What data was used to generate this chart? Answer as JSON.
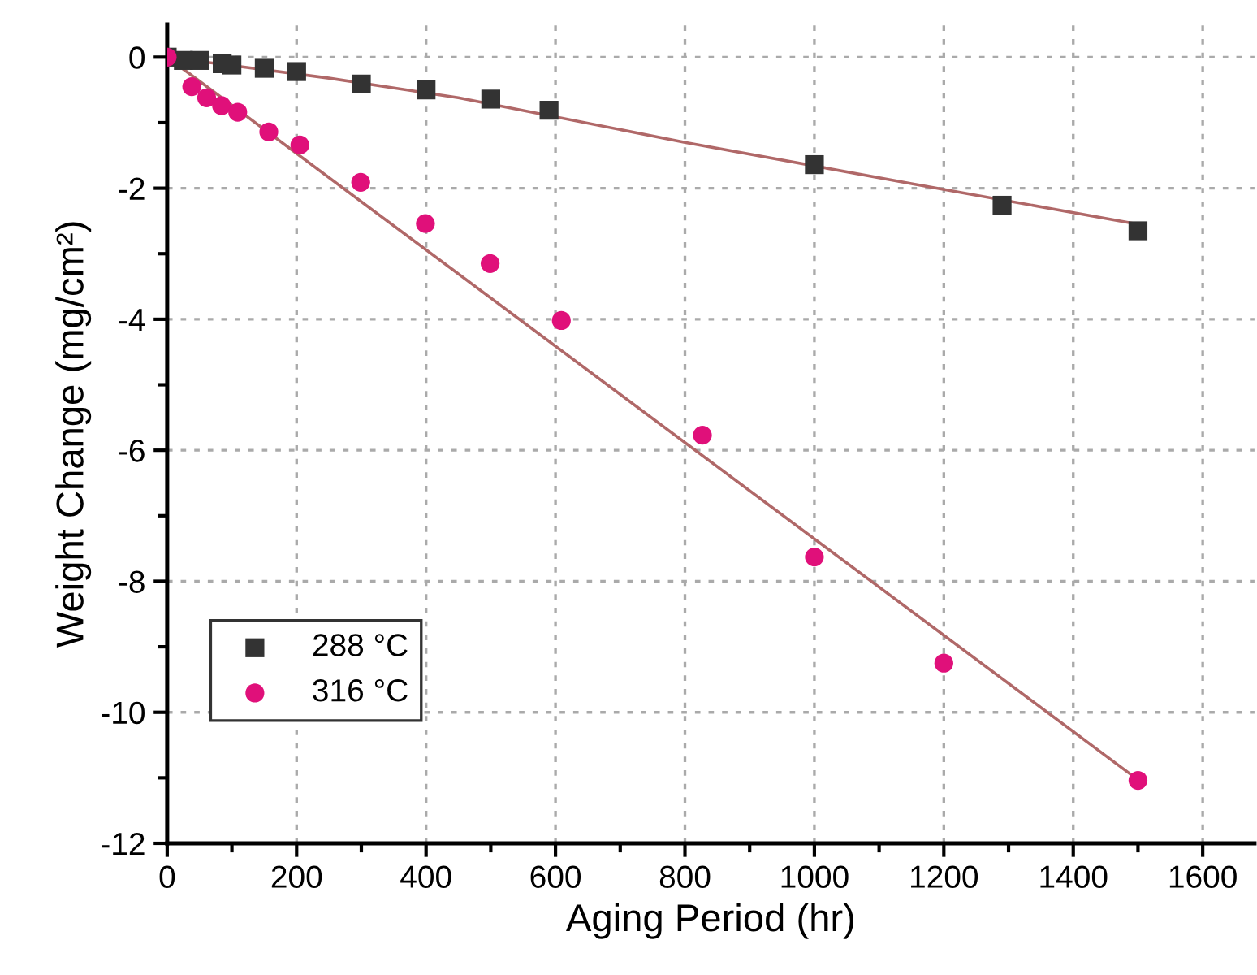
{
  "chart_data": {
    "type": "scatter",
    "xlabel": "Aging Period (hr)",
    "ylabel": "Weight Change (mg/cm²)",
    "series": [
      {
        "name": "288 °C",
        "marker": "square",
        "color": "#333333",
        "x": [
          0,
          25,
          50,
          85,
          100,
          150,
          200,
          300,
          400,
          500,
          590,
          1000,
          1290,
          1500
        ],
        "values": [
          0,
          -0.05,
          -0.05,
          -0.1,
          -0.12,
          -0.17,
          -0.22,
          -0.41,
          -0.5,
          -0.64,
          -0.81,
          -1.64,
          -2.26,
          -2.65
        ]
      },
      {
        "name": "316 °C",
        "marker": "circle",
        "color": "#e0107a",
        "x": [
          0,
          38,
          61,
          84,
          109,
          157,
          205,
          299,
          399,
          499,
          609,
          827,
          1000,
          1200,
          1500
        ],
        "values": [
          0,
          -0.45,
          -0.62,
          -0.74,
          -0.84,
          -1.14,
          -1.34,
          -1.91,
          -2.54,
          -3.15,
          -4.02,
          -5.77,
          -7.63,
          -9.25,
          -11.04
        ]
      },
      {
        "type": "line",
        "color": "#b06868",
        "x": [
          0,
          250,
          450,
          800,
          1150,
          1500
        ],
        "values": [
          0,
          -0.32,
          -0.62,
          -1.3,
          -1.93,
          -2.55
        ]
      },
      {
        "type": "line",
        "color": "#b06868",
        "x": [
          0,
          1500
        ],
        "values": [
          0,
          -11.03
        ]
      }
    ],
    "xlim": [
      0,
      1680
    ],
    "ylim": [
      -12,
      0.5
    ],
    "xticks": [
      0,
      200,
      400,
      600,
      800,
      1000,
      1200,
      1400,
      1600
    ],
    "yticks": [
      -12,
      -10,
      -8,
      -6,
      -4,
      -2,
      0
    ],
    "grid": true,
    "legend": "bottom left"
  }
}
